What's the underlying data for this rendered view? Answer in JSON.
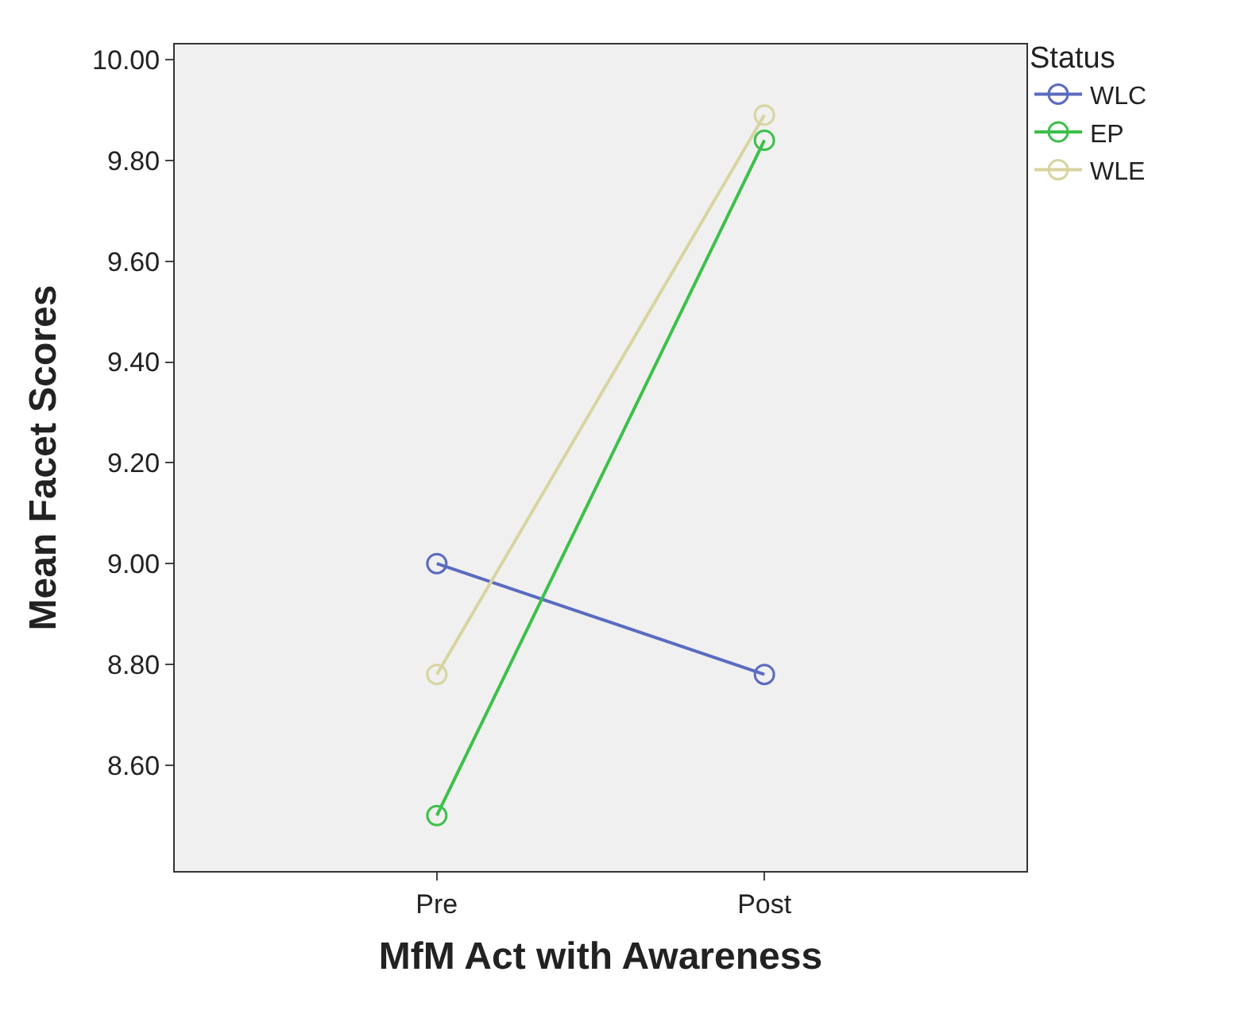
{
  "chart_data": {
    "type": "line",
    "xlabel": "MfM Act with Awareness",
    "ylabel": "Mean Facet Scores",
    "legend_title": "Status",
    "categories": [
      "Pre",
      "Post"
    ],
    "series": [
      {
        "name": "WLC",
        "color": "#5a6bc0",
        "values": [
          9.0,
          8.78
        ]
      },
      {
        "name": "EP",
        "color": "#3cc04a",
        "values": [
          8.5,
          9.84
        ]
      },
      {
        "name": "WLE",
        "color": "#d8d4a0",
        "values": [
          8.78,
          9.89
        ]
      }
    ],
    "ylim": [
      8.39,
      10.03
    ],
    "yticks": [
      {
        "value": 8.6,
        "label": "8.60"
      },
      {
        "value": 8.8,
        "label": "8.80"
      },
      {
        "value": 9.0,
        "label": "9.00"
      },
      {
        "value": 9.2,
        "label": "9.20"
      },
      {
        "value": 9.4,
        "label": "9.40"
      },
      {
        "value": 9.6,
        "label": "9.60"
      },
      {
        "value": 9.8,
        "label": "9.80"
      },
      {
        "value": 10.0,
        "label": "10.00"
      }
    ],
    "grid": false,
    "legend": "top right",
    "marker": "circle",
    "line_style": "solid"
  }
}
